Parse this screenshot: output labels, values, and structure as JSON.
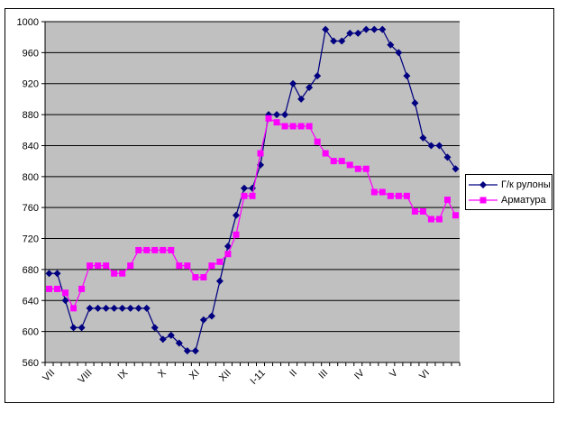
{
  "chart_data": {
    "type": "line",
    "x_axis": {
      "categories": [
        "VII",
        "VIII",
        "IX",
        "X",
        "XI",
        "XII",
        "I-11",
        "II",
        "III",
        "IV",
        "V",
        "VI"
      ],
      "label_rotation_deg": -45,
      "label_week_positions": [
        0.4,
        5.0,
        9.4,
        14.1,
        18.2,
        22.1,
        26.3,
        30.2,
        34.0,
        38.5,
        42.6,
        46.5
      ],
      "minor_ticks_per_week": true
    },
    "y_axis": {
      "min": 560,
      "max": 1000,
      "step": 40,
      "ticks": [
        1000,
        960,
        920,
        880,
        840,
        800,
        760,
        720,
        680,
        640,
        600,
        560
      ]
    },
    "n_points": 51,
    "series": [
      {
        "name": "Г/к рулоны",
        "color": "#000080",
        "marker": "diamond",
        "values": [
          675,
          675,
          640,
          605,
          605,
          630,
          630,
          630,
          630,
          630,
          630,
          630,
          630,
          605,
          590,
          595,
          585,
          575,
          575,
          615,
          620,
          665,
          710,
          750,
          785,
          785,
          815,
          880,
          880,
          880,
          920,
          900,
          915,
          930,
          990,
          975,
          975,
          985,
          985,
          990,
          990,
          990,
          970,
          960,
          930,
          895,
          850,
          840,
          840,
          825,
          810
        ]
      },
      {
        "name": "Арматура",
        "color": "#FF00FF",
        "marker": "square",
        "values": [
          655,
          655,
          650,
          630,
          655,
          685,
          685,
          685,
          675,
          675,
          685,
          705,
          705,
          705,
          705,
          705,
          685,
          685,
          670,
          670,
          685,
          690,
          700,
          725,
          775,
          775,
          830,
          875,
          870,
          865,
          865,
          865,
          865,
          845,
          830,
          820,
          820,
          815,
          810,
          810,
          780,
          780,
          775,
          775,
          775,
          755,
          755,
          745,
          745,
          770,
          750
        ]
      }
    ],
    "legend": {
      "position": "right",
      "background": "#FFFFFF",
      "border_color": "#000000"
    },
    "plot": {
      "background": "#C0C0C0",
      "gridline_color": "#000000",
      "axis_color": "#000000",
      "grid": true
    },
    "frame_border_color": "#000000",
    "page_background": "#FFFFFF"
  }
}
